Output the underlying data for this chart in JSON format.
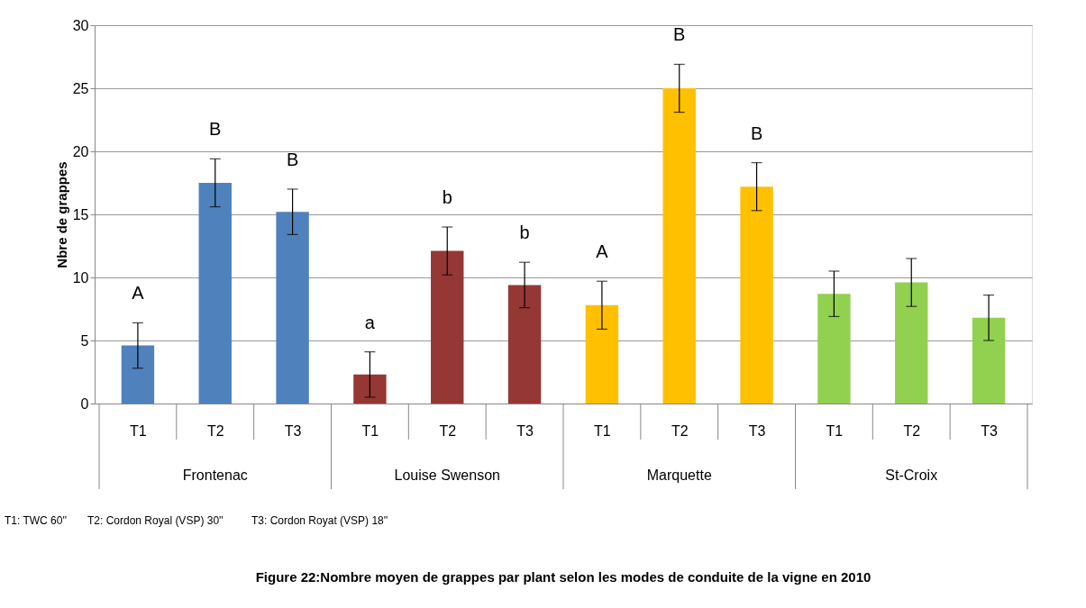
{
  "chart_data": {
    "type": "bar",
    "title": "Figure 22:Nombre moyen de grappes par plant selon les modes de conduite de la vigne en 2010",
    "ylabel": "Nbre de grappes",
    "categories": [
      "T1",
      "T2",
      "T3",
      "T1",
      "T2",
      "T3",
      "T1",
      "T2",
      "T3",
      "T1",
      "T2",
      "T3"
    ],
    "series": [
      {
        "color": "#4f81bd",
        "values": [
          4.6,
          17.5,
          15.2,
          null,
          null,
          null,
          null,
          null,
          null,
          null,
          null,
          null
        ],
        "errors": [
          1.8,
          1.9,
          1.8,
          null,
          null,
          null,
          null,
          null,
          null,
          null,
          null,
          null
        ],
        "value_labels": [
          "A",
          "B",
          "B",
          null,
          null,
          null,
          null,
          null,
          null,
          null,
          null,
          null
        ]
      },
      {
        "color": "#953735",
        "values": [
          null,
          null,
          null,
          2.3,
          12.1,
          9.4,
          null,
          null,
          null,
          null,
          null,
          null
        ],
        "errors": [
          null,
          null,
          null,
          1.8,
          1.9,
          1.8,
          null,
          null,
          null,
          null,
          null,
          null
        ],
        "value_labels": [
          null,
          null,
          null,
          "a",
          "b",
          "b",
          null,
          null,
          null,
          null,
          null,
          null
        ]
      },
      {
        "color": "#ffc000",
        "values": [
          null,
          null,
          null,
          null,
          null,
          null,
          7.8,
          25.0,
          17.2,
          null,
          null,
          null
        ],
        "errors": [
          null,
          null,
          null,
          null,
          null,
          null,
          1.9,
          1.9,
          1.9,
          null,
          null,
          null
        ],
        "value_labels": [
          null,
          null,
          null,
          null,
          null,
          null,
          "A",
          "B",
          "B",
          null,
          null,
          null
        ]
      },
      {
        "color": "#92d050",
        "values": [
          null,
          null,
          null,
          null,
          null,
          null,
          null,
          null,
          null,
          8.7,
          9.6,
          6.8
        ],
        "errors": [
          null,
          null,
          null,
          null,
          null,
          null,
          null,
          null,
          null,
          1.8,
          1.9,
          1.8
        ]
      }
    ],
    "ylim": [
      0,
      30
    ],
    "yticks": [
      0,
      5,
      10,
      15,
      20,
      25,
      30
    ],
    "grid": "y",
    "legend": false,
    "annotations": [
      "Frontenac",
      "Louise Swenson",
      "Marquette",
      "St-Croix",
      "T1: TWC 60''",
      "T2: Cordon Royal (VSP) 30''",
      "T3: Cordon Royat (VSP) 18''"
    ]
  }
}
